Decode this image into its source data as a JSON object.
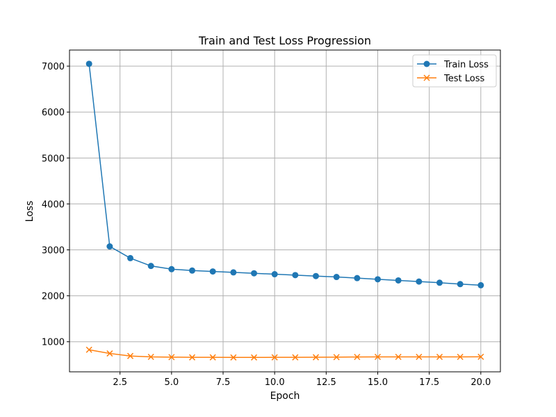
{
  "chart_data": {
    "type": "line",
    "title": "Train and Test Loss Progression",
    "xlabel": "Epoch",
    "ylabel": "Loss",
    "xlim": [
      0.05,
      20.95
    ],
    "ylim": [
      345,
      7350
    ],
    "xticks": [
      2.5,
      5.0,
      7.5,
      10.0,
      12.5,
      15.0,
      17.5,
      20.0
    ],
    "xtick_labels": [
      "2.5",
      "5.0",
      "7.5",
      "10.0",
      "12.5",
      "15.0",
      "17.5",
      "20.0"
    ],
    "yticks": [
      1000,
      2000,
      3000,
      4000,
      5000,
      6000,
      7000
    ],
    "ytick_labels": [
      "1000",
      "2000",
      "3000",
      "4000",
      "5000",
      "6000",
      "7000"
    ],
    "grid": true,
    "legend_position": "top-right",
    "x": [
      1,
      2,
      3,
      4,
      5,
      6,
      7,
      8,
      9,
      10,
      11,
      12,
      13,
      14,
      15,
      16,
      17,
      18,
      19,
      20
    ],
    "series": [
      {
        "name": "Train Loss",
        "color": "#1f77b4",
        "marker": "circle",
        "values": [
          7050,
          3075,
          2820,
          2650,
          2580,
          2550,
          2530,
          2510,
          2490,
          2470,
          2450,
          2430,
          2410,
          2385,
          2360,
          2335,
          2310,
          2285,
          2255,
          2230
        ]
      },
      {
        "name": "Test Loss",
        "color": "#ff7f0e",
        "marker": "x",
        "values": [
          825,
          745,
          690,
          670,
          665,
          660,
          660,
          658,
          658,
          660,
          660,
          662,
          665,
          668,
          670,
          670,
          670,
          670,
          670,
          672
        ]
      }
    ]
  }
}
